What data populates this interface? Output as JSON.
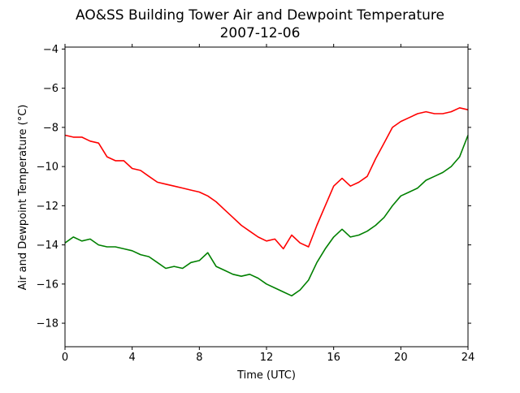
{
  "chart_data": {
    "type": "line",
    "title": "AO&SS Building Tower Air and Dewpoint Temperature",
    "subtitle": "2007-12-06",
    "xlabel": "Time (UTC)",
    "ylabel": "Air and Dewpoint Temperature (°C)",
    "xlim": [
      0,
      24
    ],
    "ylim": [
      -19.2,
      -3.9
    ],
    "xticks": [
      0,
      4,
      8,
      12,
      16,
      20,
      24
    ],
    "xtick_labels": [
      "0",
      "4",
      "8",
      "12",
      "16",
      "20",
      "24"
    ],
    "yticks": [
      -18,
      -16,
      -14,
      -12,
      -10,
      -8,
      -6,
      -4
    ],
    "ytick_labels": [
      "−18",
      "−16",
      "−14",
      "−12",
      "−10",
      "−8",
      "−6",
      "−4"
    ],
    "grid": false,
    "series": [
      {
        "color": "#ff0000",
        "x": [
          0,
          0.5,
          1,
          1.5,
          2,
          2.5,
          3,
          3.5,
          4,
          4.5,
          5,
          5.5,
          6,
          6.5,
          7,
          7.5,
          8,
          8.5,
          9,
          9.5,
          10,
          10.5,
          11,
          11.5,
          12,
          12.5,
          13,
          13.5,
          14,
          14.5,
          15,
          15.5,
          16,
          16.5,
          17,
          17.5,
          18,
          18.5,
          19,
          19.5,
          20,
          20.5,
          21,
          21.5,
          22,
          22.5,
          23,
          23.5,
          24
        ],
        "y": [
          -8.4,
          -8.5,
          -8.5,
          -8.7,
          -8.8,
          -9.5,
          -9.7,
          -9.7,
          -10.1,
          -10.2,
          -10.5,
          -10.8,
          -10.9,
          -11.0,
          -11.1,
          -11.2,
          -11.3,
          -11.5,
          -11.8,
          -12.2,
          -12.6,
          -13.0,
          -13.3,
          -13.6,
          -13.8,
          -13.7,
          -14.2,
          -13.5,
          -13.9,
          -14.1,
          -13.0,
          -12.0,
          -11.0,
          -10.6,
          -11.0,
          -10.8,
          -10.5,
          -9.6,
          -8.8,
          -8.0,
          -7.7,
          -7.5,
          -7.3,
          -7.2,
          -7.3,
          -7.3,
          -7.2,
          -7.0,
          -7.1
        ]
      },
      {
        "color": "#008000",
        "x": [
          0,
          0.5,
          1,
          1.5,
          2,
          2.5,
          3,
          3.5,
          4,
          4.5,
          5,
          5.5,
          6,
          6.5,
          7,
          7.5,
          8,
          8.5,
          9,
          9.5,
          10,
          10.5,
          11,
          11.5,
          12,
          12.5,
          13,
          13.5,
          14,
          14.5,
          15,
          15.5,
          16,
          16.5,
          17,
          17.5,
          18,
          18.5,
          19,
          19.5,
          20,
          20.5,
          21,
          21.5,
          22,
          22.5,
          23,
          23.5,
          24
        ],
        "y": [
          -13.9,
          -13.6,
          -13.8,
          -13.7,
          -14.0,
          -14.1,
          -14.1,
          -14.2,
          -14.3,
          -14.5,
          -14.6,
          -14.9,
          -15.2,
          -15.1,
          -15.2,
          -14.9,
          -14.8,
          -14.4,
          -15.1,
          -15.3,
          -15.5,
          -15.6,
          -15.5,
          -15.7,
          -16.0,
          -16.2,
          -16.4,
          -16.6,
          -16.3,
          -15.8,
          -14.9,
          -14.2,
          -13.6,
          -13.2,
          -13.6,
          -13.5,
          -13.3,
          -13.0,
          -12.6,
          -12.0,
          -11.5,
          -11.3,
          -11.1,
          -10.7,
          -10.5,
          -10.3,
          -10.0,
          -9.5,
          -8.4
        ]
      }
    ]
  }
}
